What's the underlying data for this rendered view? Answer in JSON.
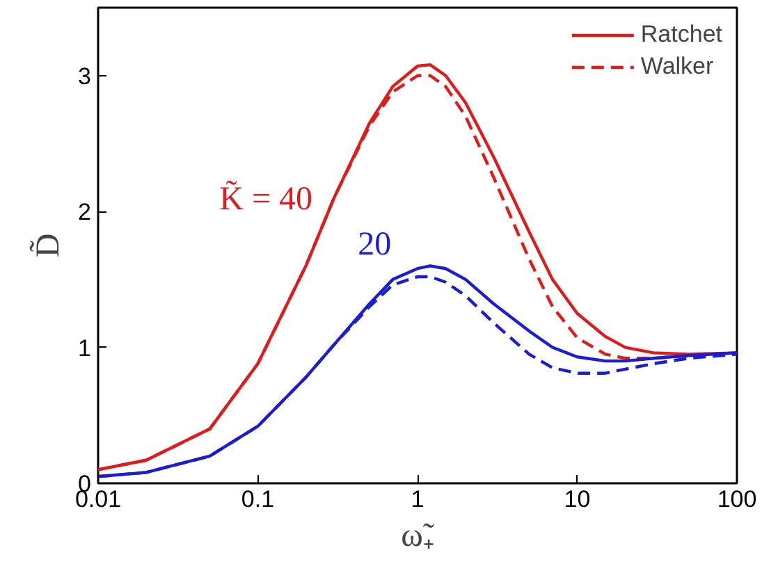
{
  "chart_data": {
    "type": "line",
    "xlabel": "ω̃₊",
    "ylabel": "D̃",
    "x": [
      0.01,
      0.02,
      0.05,
      0.1,
      0.2,
      0.3,
      0.5,
      0.7,
      1,
      1.2,
      1.5,
      2,
      3,
      5,
      7,
      10,
      15,
      20,
      30,
      50,
      100
    ],
    "series": [
      {
        "name": "Ratchet",
        "color": "#dd1c1c",
        "line_style": "solid",
        "values": [
          0.1,
          0.17,
          0.4,
          0.88,
          1.6,
          2.1,
          2.65,
          2.92,
          3.07,
          3.08,
          3.0,
          2.8,
          2.4,
          1.85,
          1.5,
          1.25,
          1.08,
          1.0,
          0.96,
          0.95,
          0.96
        ]
      },
      {
        "name": "Walker",
        "color": "#dd1c1c",
        "line_style": "dashed",
        "values": [
          0.1,
          0.17,
          0.4,
          0.88,
          1.6,
          2.1,
          2.63,
          2.88,
          3.0,
          3.0,
          2.92,
          2.7,
          2.25,
          1.65,
          1.3,
          1.07,
          0.95,
          0.92,
          0.92,
          0.94,
          0.96
        ]
      },
      {
        "color": "#1c1cd0",
        "line_style": "solid",
        "values": [
          0.05,
          0.08,
          0.2,
          0.42,
          0.78,
          1.02,
          1.32,
          1.5,
          1.58,
          1.6,
          1.58,
          1.5,
          1.32,
          1.12,
          1.0,
          0.93,
          0.9,
          0.9,
          0.92,
          0.94,
          0.96
        ]
      },
      {
        "color": "#1c1cd0",
        "line_style": "dashed",
        "values": [
          0.05,
          0.08,
          0.2,
          0.42,
          0.78,
          1.02,
          1.3,
          1.46,
          1.52,
          1.52,
          1.48,
          1.38,
          1.18,
          0.95,
          0.85,
          0.81,
          0.81,
          0.84,
          0.88,
          0.92,
          0.95
        ]
      }
    ],
    "annotations": [
      "K̃ = 40",
      "20"
    ],
    "log": "x",
    "xlim": [
      0.01,
      100
    ],
    "ylim": [
      0,
      3.5
    ],
    "xticks": [
      0.01,
      0.1,
      1,
      10,
      100
    ],
    "yticks": [
      0,
      1,
      2,
      3
    ],
    "grid": false,
    "legend": "top right"
  }
}
